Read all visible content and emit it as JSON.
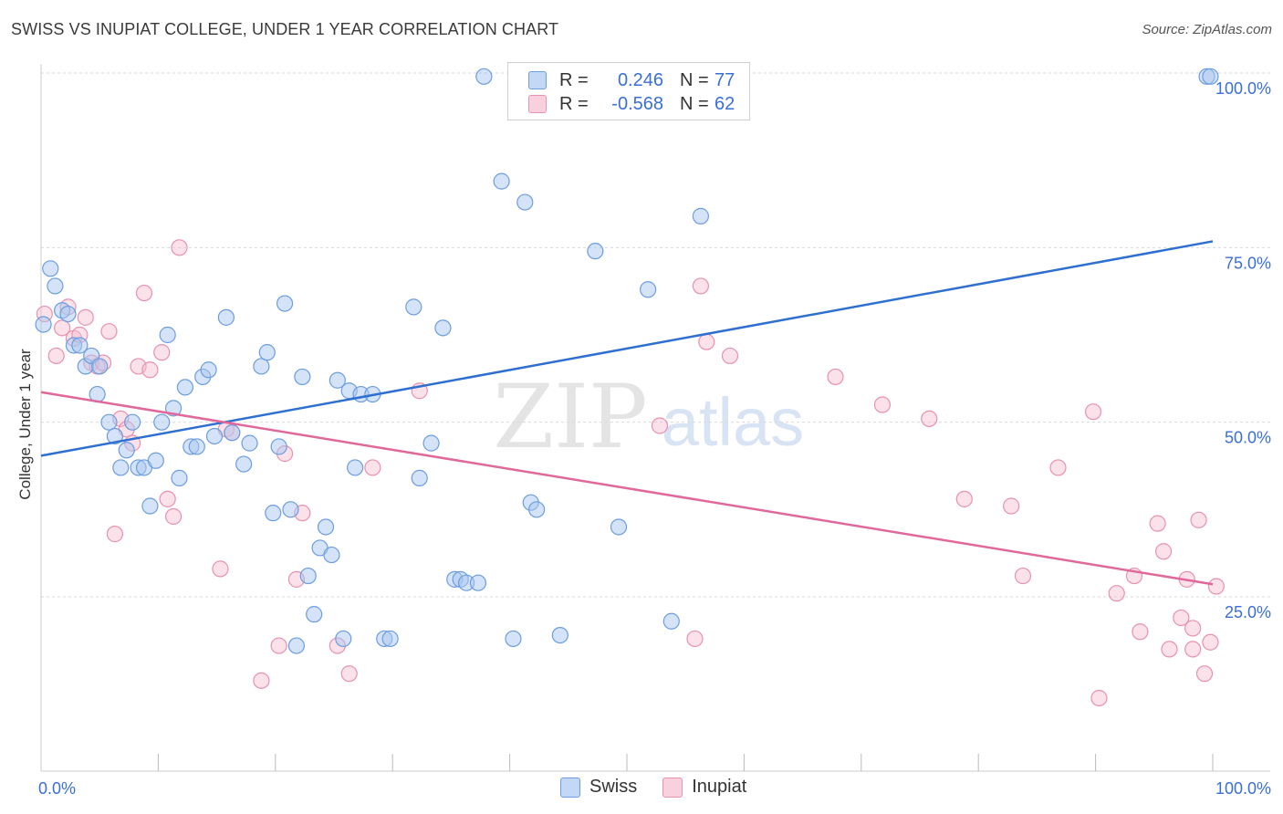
{
  "header": {
    "title": "SWISS VS INUPIAT COLLEGE, UNDER 1 YEAR CORRELATION CHART",
    "source": "Source: ZipAtlas.com"
  },
  "watermark": {
    "zip": "ZIP",
    "atlas": "atlas"
  },
  "legend": {
    "swiss": {
      "r_label": "R =",
      "r_value": "0.246",
      "n_label": "N =",
      "n_value": "77"
    },
    "inupiat": {
      "r_label": "R =",
      "r_value": "-0.568",
      "n_label": "N =",
      "n_value": "62"
    }
  },
  "bottom_legend": {
    "swiss": "Swiss",
    "inupiat": "Inupiat"
  },
  "colors": {
    "swiss_fill": "#a9c7f0",
    "swiss_stroke": "#6c9de0",
    "swiss_line": "#2f6fd0",
    "inupiat_fill": "#f6bcd0",
    "inupiat_stroke": "#e891b0",
    "inupiat_line": "#e0689a",
    "tick_label": "#3a6fd8",
    "grid": "#d9d9d9"
  },
  "chart_data": {
    "type": "scatter",
    "title": "SWISS VS INUPIAT COLLEGE, UNDER 1 YEAR CORRELATION CHART",
    "xlabel": "",
    "ylabel": "College, Under 1 year",
    "xlim": [
      0,
      100
    ],
    "ylim": [
      0,
      105
    ],
    "x_tick_labels": [
      {
        "value": 0,
        "label": "0.0%"
      },
      {
        "value": 100,
        "label": "100.0%"
      }
    ],
    "y_tick_labels": [
      {
        "value": 25,
        "label": "25.0%"
      },
      {
        "value": 50,
        "label": "50.0%"
      },
      {
        "value": 75,
        "label": "75.0%"
      },
      {
        "value": 100,
        "label": "100.0%"
      }
    ],
    "x_minor_ticks": [
      10,
      20,
      30,
      40,
      50,
      60,
      70,
      80,
      90,
      100
    ],
    "grid": true,
    "series": [
      {
        "name": "Swiss",
        "trend": {
          "x": [
            0,
            100
          ],
          "y": [
            45.2,
            75.9
          ]
        },
        "points": [
          [
            0.2,
            64
          ],
          [
            0.8,
            72
          ],
          [
            1.2,
            69.5
          ],
          [
            1.8,
            66
          ],
          [
            2.3,
            65.5
          ],
          [
            2.8,
            61
          ],
          [
            3.3,
            61
          ],
          [
            3.8,
            58
          ],
          [
            4.3,
            59.5
          ],
          [
            5,
            58
          ],
          [
            4.8,
            54
          ],
          [
            5.8,
            50
          ],
          [
            6.3,
            48
          ],
          [
            7.3,
            46
          ],
          [
            6.8,
            43.5
          ],
          [
            7.8,
            50
          ],
          [
            8.3,
            43.5
          ],
          [
            8.8,
            43.5
          ],
          [
            9.8,
            44.5
          ],
          [
            9.3,
            38
          ],
          [
            10.3,
            50
          ],
          [
            10.8,
            62.5
          ],
          [
            11.3,
            52
          ],
          [
            12.3,
            55
          ],
          [
            11.8,
            42
          ],
          [
            12.8,
            46.5
          ],
          [
            13.3,
            46.5
          ],
          [
            13.8,
            56.5
          ],
          [
            14.3,
            57.5
          ],
          [
            14.8,
            48
          ],
          [
            15.8,
            65
          ],
          [
            16.3,
            48.5
          ],
          [
            17.3,
            44
          ],
          [
            17.8,
            47
          ],
          [
            18.8,
            58
          ],
          [
            19.3,
            60
          ],
          [
            19.8,
            37
          ],
          [
            20.3,
            46.5
          ],
          [
            20.8,
            67
          ],
          [
            21.3,
            37.5
          ],
          [
            21.8,
            18
          ],
          [
            22.3,
            56.5
          ],
          [
            22.8,
            28
          ],
          [
            23.3,
            22.5
          ],
          [
            23.8,
            32
          ],
          [
            24.3,
            35
          ],
          [
            24.8,
            31
          ],
          [
            25.3,
            56
          ],
          [
            25.8,
            19
          ],
          [
            26.3,
            54.5
          ],
          [
            26.8,
            43.5
          ],
          [
            27.3,
            54
          ],
          [
            28.3,
            54
          ],
          [
            29.3,
            19
          ],
          [
            29.8,
            19
          ],
          [
            31.8,
            66.5
          ],
          [
            32.3,
            42
          ],
          [
            33.3,
            47
          ],
          [
            34.3,
            63.5
          ],
          [
            35.3,
            27.5
          ],
          [
            35.8,
            27.5
          ],
          [
            36.3,
            27
          ],
          [
            37.3,
            27
          ],
          [
            37.8,
            99.5
          ],
          [
            39.3,
            84.5
          ],
          [
            40.3,
            19
          ],
          [
            41.3,
            81.5
          ],
          [
            41.8,
            38.5
          ],
          [
            42.3,
            37.5
          ],
          [
            44.3,
            19.5
          ],
          [
            47.3,
            74.5
          ],
          [
            49.3,
            35
          ],
          [
            51.8,
            69
          ],
          [
            53.8,
            21.5
          ],
          [
            56.3,
            79.5
          ],
          [
            99.5,
            99.5
          ],
          [
            99.8,
            99.5
          ]
        ]
      },
      {
        "name": "Inupiat",
        "trend": {
          "x": [
            0,
            100
          ],
          "y": [
            54.3,
            26.8
          ]
        },
        "points": [
          [
            0.3,
            65.5
          ],
          [
            1.3,
            59.5
          ],
          [
            1.8,
            63.5
          ],
          [
            2.3,
            66.5
          ],
          [
            2.8,
            62
          ],
          [
            3.3,
            62.5
          ],
          [
            3.8,
            65
          ],
          [
            4.3,
            58.5
          ],
          [
            4.8,
            58
          ],
          [
            5.3,
            58.5
          ],
          [
            5.8,
            63
          ],
          [
            6.3,
            34
          ],
          [
            6.8,
            50.5
          ],
          [
            7.3,
            49
          ],
          [
            7.8,
            47
          ],
          [
            8.3,
            58
          ],
          [
            8.8,
            68.5
          ],
          [
            9.3,
            57.5
          ],
          [
            10.3,
            60
          ],
          [
            10.8,
            39
          ],
          [
            11.3,
            36.5
          ],
          [
            11.8,
            75
          ],
          [
            15.3,
            29
          ],
          [
            15.8,
            49
          ],
          [
            16.3,
            48.5
          ],
          [
            18.8,
            13
          ],
          [
            20.3,
            18
          ],
          [
            20.8,
            45.5
          ],
          [
            21.8,
            27.5
          ],
          [
            22.3,
            37
          ],
          [
            25.3,
            18
          ],
          [
            26.3,
            14
          ],
          [
            28.3,
            43.5
          ],
          [
            32.3,
            54.5
          ],
          [
            52.8,
            49.5
          ],
          [
            55.8,
            19
          ],
          [
            56.3,
            69.5
          ],
          [
            56.8,
            61.5
          ],
          [
            58.8,
            59.5
          ],
          [
            67.8,
            56.5
          ],
          [
            71.8,
            52.5
          ],
          [
            75.8,
            50.5
          ],
          [
            78.8,
            39
          ],
          [
            82.8,
            38
          ],
          [
            83.8,
            28
          ],
          [
            86.8,
            43.5
          ],
          [
            89.8,
            51.5
          ],
          [
            90.3,
            10.5
          ],
          [
            91.8,
            25.5
          ],
          [
            93.3,
            28
          ],
          [
            93.8,
            20
          ],
          [
            95.3,
            35.5
          ],
          [
            95.8,
            31.5
          ],
          [
            96.3,
            17.5
          ],
          [
            97.3,
            22
          ],
          [
            97.8,
            27.5
          ],
          [
            98.3,
            17.5
          ],
          [
            98.8,
            36
          ],
          [
            98.3,
            20.5
          ],
          [
            99.3,
            14
          ],
          [
            99.8,
            18.5
          ],
          [
            100.3,
            26.5
          ]
        ]
      }
    ]
  }
}
